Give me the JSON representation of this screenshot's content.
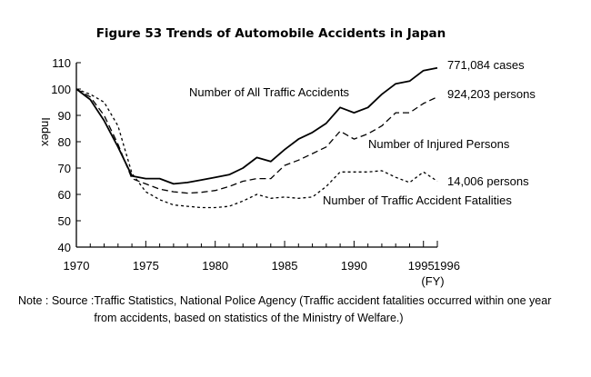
{
  "chart_data": {
    "type": "line",
    "title": "Figure 53 Trends of Automobile Accidents in Japan",
    "ylabel": "Index",
    "xlabel": "(FY)",
    "xlim": [
      1970,
      1996
    ],
    "ylim": [
      40,
      110
    ],
    "x_ticks": [
      "1970",
      "1975",
      "1980",
      "1985",
      "1990",
      "1995",
      "1996"
    ],
    "x_tick_values": [
      1970,
      1975,
      1980,
      1985,
      1990,
      1995,
      1996
    ],
    "y_ticks": [
      40,
      50,
      60,
      70,
      80,
      90,
      100,
      110
    ],
    "x": [
      1970,
      1971,
      1972,
      1973,
      1974,
      1975,
      1976,
      1977,
      1978,
      1979,
      1980,
      1981,
      1982,
      1983,
      1984,
      1985,
      1986,
      1987,
      1988,
      1989,
      1990,
      1991,
      1992,
      1993,
      1994,
      1995,
      1996
    ],
    "series": [
      {
        "name": "Number of All Traffic Accidents",
        "style": "solid",
        "values": [
          100,
          96,
          88,
          78,
          67,
          66,
          66,
          64,
          64.5,
          65.5,
          66.5,
          67.5,
          70,
          74,
          72.5,
          77,
          81,
          83.5,
          87,
          93,
          91,
          93,
          98,
          102,
          103,
          107,
          108
        ],
        "end_label": "771,084 cases"
      },
      {
        "name": "Number of Injured Persons",
        "style": "dashed",
        "values": [
          100,
          97,
          90,
          79,
          66,
          64,
          62,
          61,
          60.5,
          60.8,
          61.5,
          63,
          65,
          66,
          66,
          71,
          73,
          75.5,
          78,
          84,
          81,
          83,
          86,
          91,
          91,
          94.5,
          97
        ],
        "end_label": "924,203 persons"
      },
      {
        "name": "Number of Traffic Accident Fatalities",
        "style": "dotted",
        "values": [
          100,
          98,
          95,
          86,
          68,
          61,
          58,
          56,
          55.5,
          55,
          55,
          55.5,
          57.5,
          60,
          58.5,
          59,
          58.5,
          59,
          63,
          68.5,
          68.5,
          68.5,
          69,
          66.5,
          64.5,
          68.5,
          65
        ],
        "end_label": "14,006 persons"
      }
    ]
  },
  "note": {
    "label": "Note : Source : ",
    "text": "Traffic Statistics, National Police Agency (Traffic accident fatalities occurred within one year from accidents, based on statistics of the Ministry of Welfare.)"
  }
}
